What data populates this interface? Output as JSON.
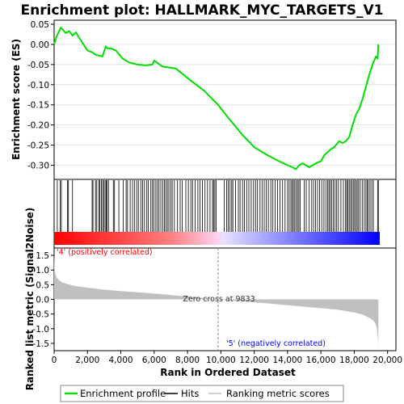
{
  "chart_data": {
    "type": "line",
    "title": "Enrichment plot: HALLMARK_MYC_TARGETS_V1",
    "top_panel": {
      "ylabel": "Enrichment score (ES)",
      "ylim": [
        -0.335,
        0.06
      ],
      "yticks": [
        "0.05",
        "0.00",
        "-0.05",
        "-0.10",
        "-0.15",
        "-0.20",
        "-0.25",
        "-0.30"
      ],
      "ytick_values": [
        0.05,
        0.0,
        -0.05,
        -0.1,
        -0.15,
        -0.2,
        -0.25,
        -0.3
      ],
      "grid": true,
      "series": [
        {
          "name": "Enrichment profile",
          "color": "#00dd00",
          "x": [
            0,
            150,
            400,
            700,
            900,
            1100,
            1300,
            1600,
            2000,
            2300,
            2450,
            2700,
            2900,
            3100,
            3200,
            3400,
            3700,
            4100,
            4500,
            5000,
            5500,
            5900,
            6000,
            6500,
            7000,
            7300,
            7600,
            8200,
            9000,
            9833,
            10500,
            11300,
            12000,
            12800,
            13500,
            14000,
            14300,
            14500,
            14700,
            14900,
            15300,
            15700,
            16000,
            16200,
            16600,
            16800,
            17100,
            17300,
            17500,
            17700,
            17900,
            18100,
            18300,
            18500,
            18700,
            18900,
            19100,
            19300,
            19400,
            19450
          ],
          "y": [
            0.0,
            0.02,
            0.042,
            0.028,
            0.033,
            0.022,
            0.03,
            0.01,
            -0.015,
            -0.02,
            -0.025,
            -0.028,
            -0.03,
            -0.005,
            -0.01,
            -0.01,
            -0.015,
            -0.035,
            -0.045,
            -0.05,
            -0.052,
            -0.05,
            -0.04,
            -0.055,
            -0.058,
            -0.06,
            -0.07,
            -0.09,
            -0.115,
            -0.15,
            -0.185,
            -0.225,
            -0.255,
            -0.275,
            -0.29,
            -0.3,
            -0.305,
            -0.31,
            -0.3,
            -0.295,
            -0.305,
            -0.295,
            -0.29,
            -0.275,
            -0.26,
            -0.255,
            -0.24,
            -0.245,
            -0.24,
            -0.23,
            -0.2,
            -0.175,
            -0.16,
            -0.135,
            -0.105,
            -0.075,
            -0.05,
            -0.03,
            -0.035,
            0.0
          ]
        }
      ]
    },
    "hits_panel": {
      "series": [
        {
          "name": "Hits",
          "color": "#000000"
        }
      ],
      "hit_ranks": [
        190,
        360,
        430,
        800,
        860,
        1100,
        2280,
        2330,
        2480,
        2560,
        2680,
        2750,
        2830,
        2910,
        2980,
        3060,
        3120,
        3180,
        3260,
        3550,
        3620,
        3880,
        4150,
        4320,
        4400,
        4560,
        4700,
        4810,
        4950,
        5050,
        5200,
        5310,
        5420,
        5560,
        5650,
        5800,
        5900,
        5980,
        6100,
        6200,
        6290,
        6400,
        6520,
        6620,
        6700,
        6790,
        6880,
        6990,
        7080,
        7210,
        7400,
        7560,
        7680,
        7900,
        8050,
        8200,
        8300,
        8450,
        8620,
        8750,
        8900,
        9050,
        9200,
        9350,
        9500,
        9560,
        9640,
        9720,
        10200,
        10350,
        10450,
        10550,
        10650,
        10720,
        10880,
        11050,
        11150,
        11300,
        11420,
        11550,
        11680,
        11820,
        11960,
        12080,
        12200,
        12350,
        12470,
        12600,
        12720,
        12850,
        13000,
        13120,
        13260,
        13400,
        13550,
        13700,
        13850,
        14000,
        14100,
        14200,
        14280,
        14350,
        14430,
        14520,
        14600,
        14680,
        14760,
        15000,
        15120,
        15300,
        15450,
        15560,
        15680,
        15800,
        15920,
        16050,
        16180,
        16300,
        16400,
        16480,
        16560,
        16650,
        16750,
        16850,
        16950,
        17050,
        17200,
        17350,
        17480,
        17550,
        17620,
        17700,
        17780,
        17860,
        17940,
        18020,
        18100,
        18180,
        18260,
        18360,
        18480,
        18600,
        18700,
        18780,
        18850,
        18950,
        19050,
        19150,
        19400,
        19450
      ]
    },
    "metric_panel": {
      "ylabel": "Ranked list metric (Signal2Noise)",
      "xlabel": "Rank in Ordered Dataset",
      "ylim": [
        -1.75,
        1.75
      ],
      "yticks": [
        "1.5",
        "1.0",
        "0.5",
        "0.0",
        "-0.5",
        "-1.0",
        "-1.5"
      ],
      "ytick_values": [
        1.5,
        1.0,
        0.5,
        0.0,
        -0.5,
        -1.0,
        -1.5
      ],
      "xlim": [
        0,
        20500
      ],
      "xticks": [
        "0",
        "2,000",
        "4,000",
        "6,000",
        "8,000",
        "10,000",
        "12,000",
        "14,000",
        "16,000",
        "18,000",
        "20,000"
      ],
      "xtick_values": [
        0,
        2000,
        4000,
        6000,
        8000,
        10000,
        12000,
        14000,
        16000,
        18000,
        20000
      ],
      "series": [
        {
          "name": "Ranking metric scores",
          "color": "#c0c0c0",
          "x": [
            0,
            30,
            80,
            150,
            300,
            500,
            800,
            1200,
            2000,
            3000,
            4000,
            5000,
            6000,
            7000,
            8000,
            9000,
            9833,
            11000,
            12000,
            13000,
            14000,
            15000,
            16000,
            17000,
            17500,
            18000,
            18500,
            18800,
            19100,
            19250,
            19350,
            19420,
            19450
          ],
          "y": [
            1.65,
            1.0,
            0.85,
            0.75,
            0.65,
            0.58,
            0.52,
            0.46,
            0.4,
            0.33,
            0.28,
            0.24,
            0.2,
            0.15,
            0.1,
            0.05,
            0.0,
            -0.05,
            -0.1,
            -0.15,
            -0.2,
            -0.25,
            -0.3,
            -0.35,
            -0.4,
            -0.45,
            -0.52,
            -0.6,
            -0.7,
            -0.8,
            -0.95,
            -1.3,
            -1.65
          ]
        }
      ],
      "annotations": {
        "pos_label": "'4' (positively correlated)",
        "neg_label": "'5' (negatively correlated)",
        "zero_cross": "Zero cross at 9833",
        "zero_cross_rank": 9833,
        "pos_color": "#ff0000",
        "neg_color": "#0000ff"
      }
    },
    "dataset_size": 19450,
    "legend": {
      "placement": "bottom",
      "entries": [
        {
          "label": "Enrichment profile",
          "color": "#00dd00"
        },
        {
          "label": "Hits",
          "color": "#000000"
        },
        {
          "label": "Ranking metric scores",
          "color": "#c0c0c0"
        }
      ]
    }
  }
}
